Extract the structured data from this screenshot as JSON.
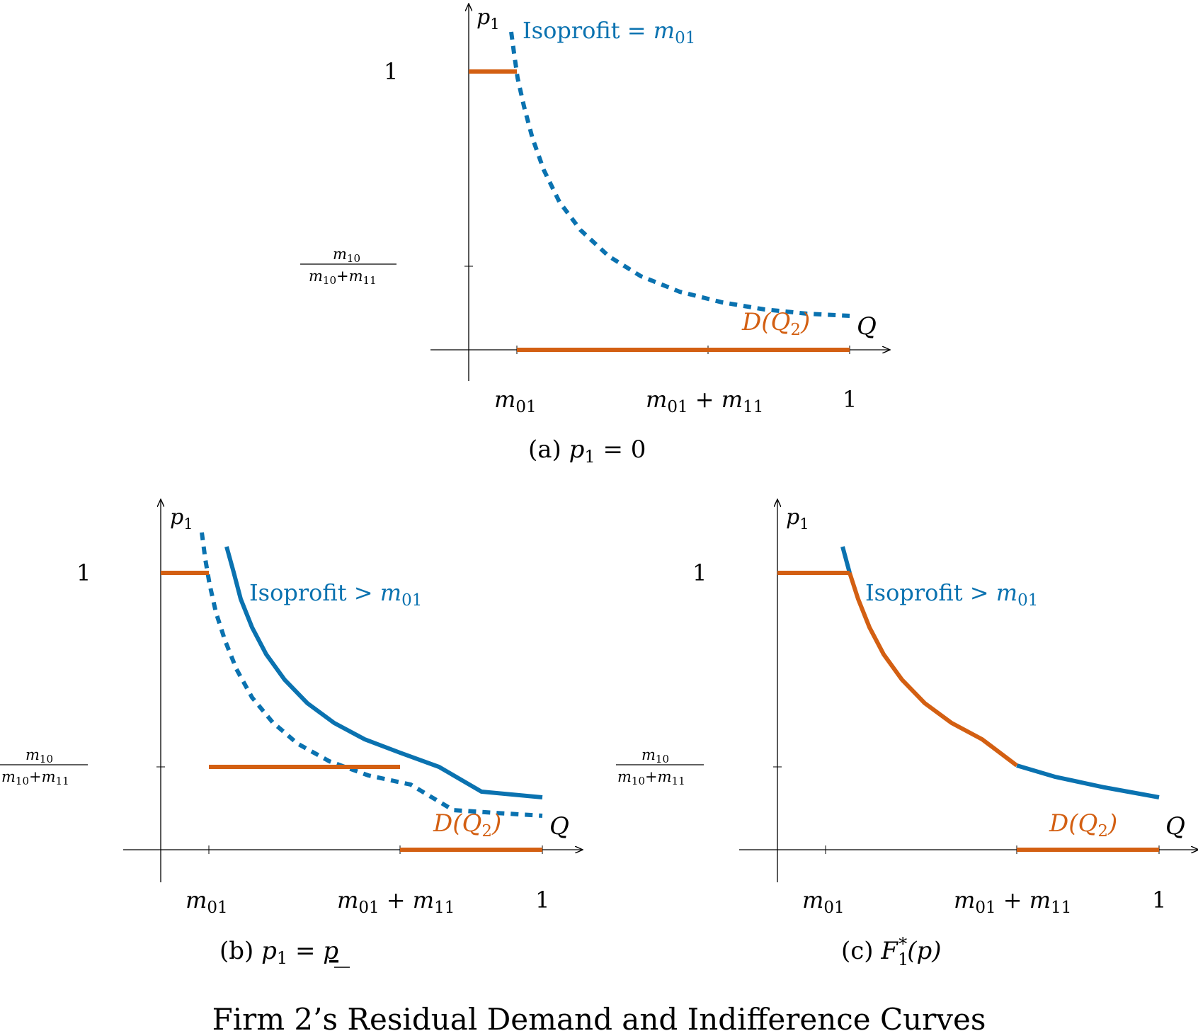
{
  "colors": {
    "isoprofit": "#0a72b0",
    "demand": "#d35f12",
    "axis": "#000000"
  },
  "figure": {
    "caption": "Firm 2’s Residual Demand and Indifference Curves"
  },
  "axes": {
    "y_label": "p",
    "y_label_sub": "1",
    "x_label": "Q",
    "y_tick_one": "1",
    "y_tick_frac_num": "m",
    "y_tick_frac_num_sub": "10",
    "y_tick_frac_den_a": "m",
    "y_tick_frac_den_a_sub": "10",
    "y_tick_frac_den_plus": "+",
    "y_tick_frac_den_b": "m",
    "y_tick_frac_den_b_sub": "11",
    "x_tick_m01": "m",
    "x_tick_m01_sub": "01",
    "x_tick_sum_a": "m",
    "x_tick_sum_a_sub": "01",
    "x_tick_sum_plus": " + ",
    "x_tick_sum_b": "m",
    "x_tick_sum_b_sub": "11",
    "x_tick_one": "1"
  },
  "panels": [
    {
      "id": "a",
      "caption_prefix": "(a) ",
      "caption_var": "p",
      "caption_sub": "1",
      "caption_rest": " = 0",
      "iso_label_text": "Isoprofit",
      "iso_label_op": " = ",
      "iso_label_var": "m",
      "iso_label_sub": "01",
      "demand_label": "D(Q",
      "demand_label_sub": "2",
      "demand_label_close": ")"
    },
    {
      "id": "b",
      "caption_prefix": "(b) ",
      "caption_var": "p",
      "caption_sub": "1",
      "caption_rest": " = ",
      "caption_underlined": "p",
      "iso_label_text": "Isoprofit",
      "iso_label_op": " > ",
      "iso_label_var": "m",
      "iso_label_sub": "01",
      "demand_label": "D(Q",
      "demand_label_sub": "2",
      "demand_label_close": ")"
    },
    {
      "id": "c",
      "caption_prefix": "(c) ",
      "caption_var": "F",
      "caption_sub": "1",
      "caption_sup": "*",
      "caption_rest": "(p)",
      "iso_label_text": "Isoprofit",
      "iso_label_op": " > ",
      "iso_label_var": "m",
      "iso_label_sub": "01",
      "demand_label": "D(Q",
      "demand_label_sub": "2",
      "demand_label_close": ")"
    }
  ]
}
